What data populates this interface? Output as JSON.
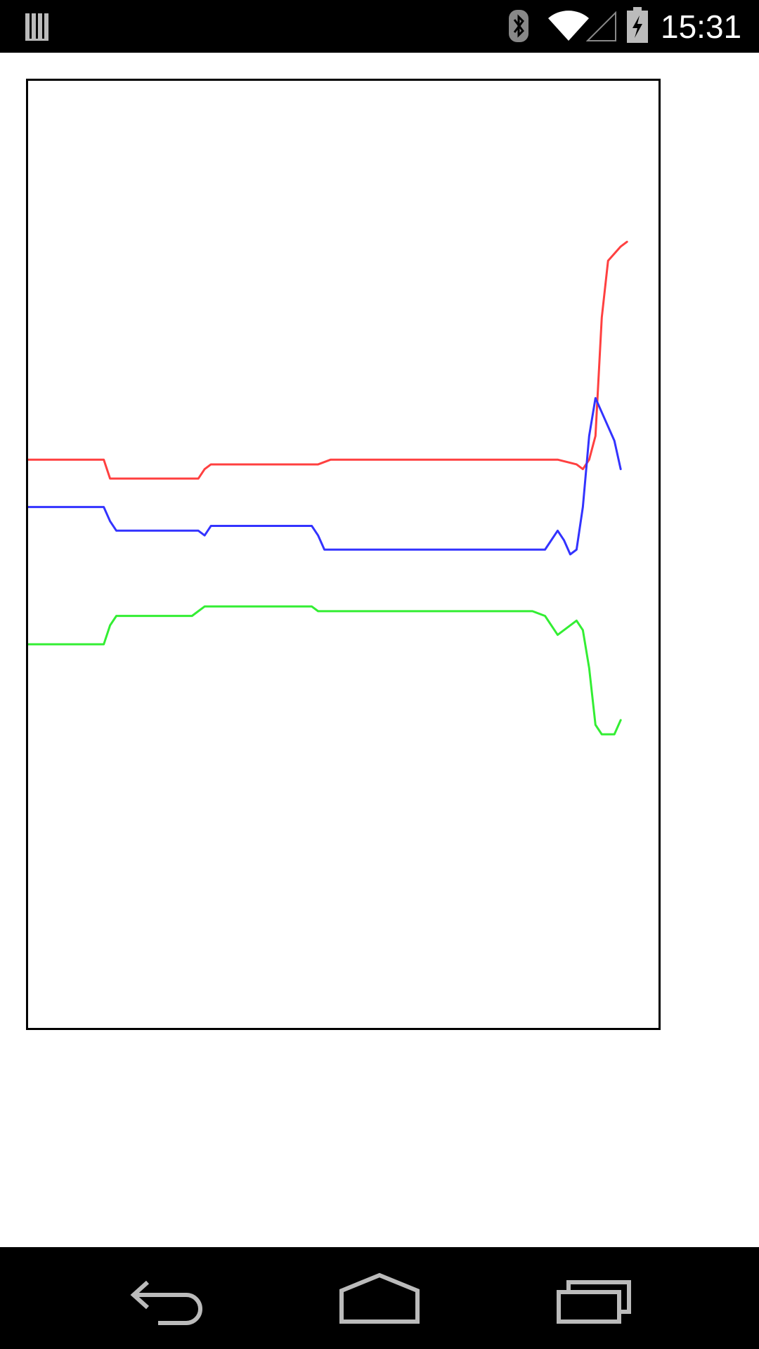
{
  "status_bar": {
    "time": "15:31",
    "icons": [
      "notification-bars-icon",
      "bluetooth-icon",
      "wifi-icon",
      "cell-signal-icon",
      "battery-charging-icon"
    ]
  },
  "chart_data": {
    "type": "line",
    "ylim": [
      -1,
      1
    ],
    "xlim": [
      0,
      100
    ],
    "grid": false,
    "legend": "none",
    "series": [
      {
        "color": "#ff4040",
        "points": [
          [
            0,
            0.2
          ],
          [
            12,
            0.2
          ],
          [
            13,
            0.16
          ],
          [
            14,
            0.16
          ],
          [
            27,
            0.16
          ],
          [
            28,
            0.18
          ],
          [
            29,
            0.19
          ],
          [
            46,
            0.19
          ],
          [
            48,
            0.2
          ],
          [
            80,
            0.2
          ],
          [
            84,
            0.2
          ],
          [
            87,
            0.19
          ],
          [
            88,
            0.18
          ],
          [
            89,
            0.2
          ],
          [
            90,
            0.25
          ],
          [
            91,
            0.5
          ],
          [
            92,
            0.62
          ],
          [
            94,
            0.65
          ],
          [
            95,
            0.66
          ]
        ]
      },
      {
        "color": "#3333ff",
        "points": [
          [
            0,
            0.1
          ],
          [
            12,
            0.1
          ],
          [
            13,
            0.07
          ],
          [
            14,
            0.05
          ],
          [
            27,
            0.05
          ],
          [
            28,
            0.04
          ],
          [
            29,
            0.06
          ],
          [
            45,
            0.06
          ],
          [
            46,
            0.04
          ],
          [
            47,
            0.01
          ],
          [
            80,
            0.01
          ],
          [
            82,
            0.01
          ],
          [
            84,
            0.05
          ],
          [
            85,
            0.03
          ],
          [
            86,
            0.0
          ],
          [
            87,
            0.01
          ],
          [
            88,
            0.1
          ],
          [
            89,
            0.25
          ],
          [
            90,
            0.33
          ],
          [
            91,
            0.3
          ],
          [
            93,
            0.24
          ],
          [
            94,
            0.18
          ]
        ]
      },
      {
        "color": "#33ee33",
        "points": [
          [
            0,
            -0.19
          ],
          [
            12,
            -0.19
          ],
          [
            13,
            -0.15
          ],
          [
            14,
            -0.13
          ],
          [
            26,
            -0.13
          ],
          [
            27,
            -0.12
          ],
          [
            28,
            -0.11
          ],
          [
            29,
            -0.11
          ],
          [
            45,
            -0.11
          ],
          [
            46,
            -0.12
          ],
          [
            48,
            -0.12
          ],
          [
            80,
            -0.12
          ],
          [
            82,
            -0.13
          ],
          [
            84,
            -0.17
          ],
          [
            86,
            -0.15
          ],
          [
            87,
            -0.14
          ],
          [
            88,
            -0.16
          ],
          [
            89,
            -0.24
          ],
          [
            90,
            -0.36
          ],
          [
            91,
            -0.38
          ],
          [
            93,
            -0.38
          ],
          [
            94,
            -0.35
          ]
        ]
      }
    ]
  }
}
